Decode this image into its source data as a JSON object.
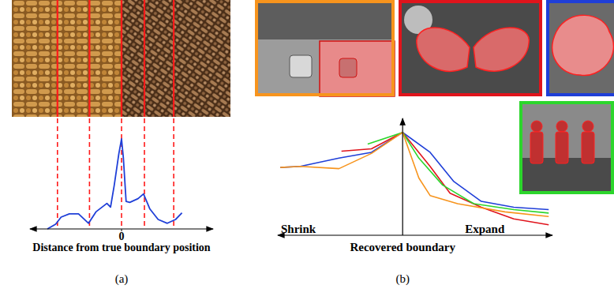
{
  "chart_data": [
    {
      "type": "line",
      "caption": "(a)",
      "x_label": "Distance from true boundary position",
      "xlim": [
        -10,
        10
      ],
      "xticks": [
        0
      ],
      "ylim": [
        0,
        10
      ],
      "tick_labels": "x",
      "x": [
        -8.1,
        -7.2,
        -6.6,
        -5.7,
        -4.7,
        -3.6,
        -2.8,
        -1.6,
        -1.2,
        -0.8,
        -0.3,
        0,
        0.2,
        0.5,
        0.9,
        1.8,
        2.4,
        3.1,
        4.0,
        5.0,
        5.9,
        6.6
      ],
      "values": [
        0,
        0.5,
        1.25,
        1.6,
        1.6,
        0.6,
        1.8,
        2.7,
        2.3,
        4.6,
        7.9,
        9.5,
        7.5,
        2.9,
        2.8,
        3.2,
        3.7,
        2.1,
        1.0,
        0.6,
        1.0,
        1.7
      ],
      "color": "#1f3fd8",
      "boundaries": [
        -7.0,
        -3.5,
        0,
        2.5,
        5.7
      ]
    },
    {
      "type": "line",
      "caption": "(b)",
      "x_label": "Recovered boundary",
      "annotations": [
        "Shrink",
        "Expand"
      ],
      "xlim": [
        -1,
        1.2
      ],
      "ylim": [
        0,
        10
      ],
      "tick_labels": false,
      "series": [
        {
          "color": "#1f3fd8",
          "x": [
            -0.98,
            -0.82,
            -0.51,
            -0.25,
            0,
            0.22,
            0.41,
            0.63,
            0.89,
            1.17
          ],
          "values": [
            5.8,
            5.9,
            6.6,
            7.1,
            8.8,
            7.1,
            4.6,
            2.9,
            2.4,
            2.2
          ]
        },
        {
          "color": "#e0141c",
          "x": [
            -0.49,
            -0.25,
            0,
            0.22,
            0.38,
            0.63,
            0.89,
            1.17
          ],
          "values": [
            7.2,
            7.4,
            8.8,
            5.9,
            3.6,
            2.4,
            1.4,
            0.9
          ]
        },
        {
          "color": "#2cd62c",
          "x": [
            -0.28,
            0,
            0.13,
            0.32,
            0.57,
            0.89,
            1.17
          ],
          "values": [
            7.8,
            8.8,
            6.6,
            4.3,
            2.7,
            2.2,
            1.9
          ]
        },
        {
          "color": "#f7941d",
          "x": [
            -0.98,
            -0.82,
            -0.51,
            -0.25,
            0,
            0.13,
            0.22,
            0.44,
            0.82,
            1.17
          ],
          "values": [
            5.8,
            5.9,
            5.7,
            7.0,
            8.8,
            4.9,
            3.4,
            2.7,
            2.0,
            1.6
          ]
        }
      ]
    }
  ]
}
